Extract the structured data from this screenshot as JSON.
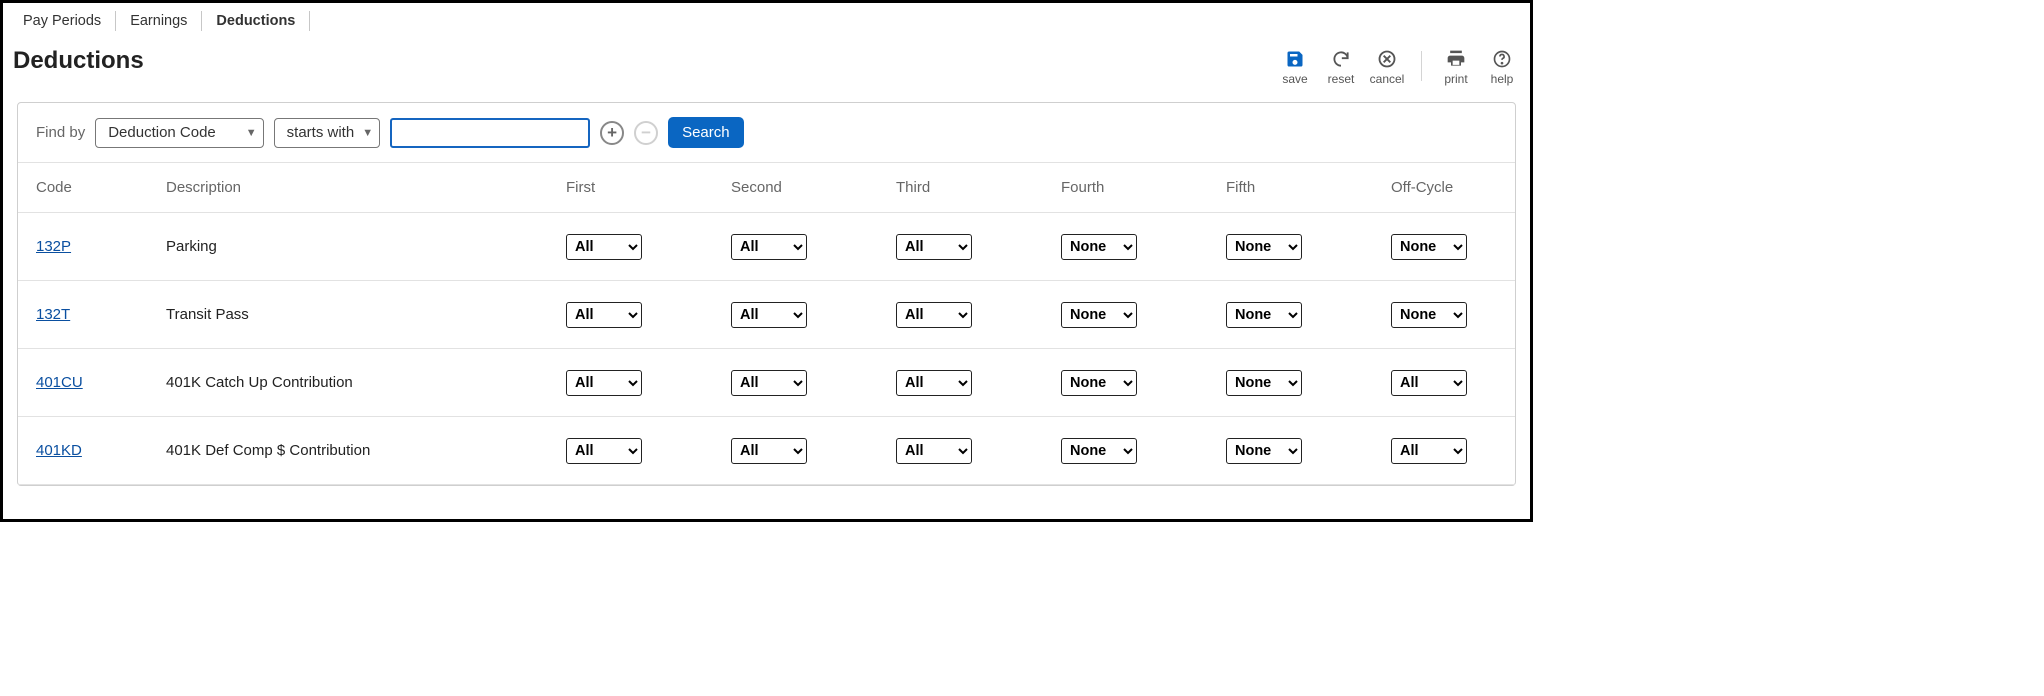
{
  "tabs": {
    "items": [
      {
        "label": "Pay Periods",
        "active": false
      },
      {
        "label": "Earnings",
        "active": false
      },
      {
        "label": "Deductions",
        "active": true
      }
    ]
  },
  "page": {
    "title": "Deductions"
  },
  "actions": {
    "save": {
      "label": "save",
      "color": "#0a66c2"
    },
    "reset": {
      "label": "reset",
      "color": "#555555"
    },
    "cancel": {
      "label": "cancel",
      "color": "#555555"
    },
    "print": {
      "label": "print",
      "color": "#555555"
    },
    "help": {
      "label": "help",
      "color": "#555555"
    }
  },
  "findbar": {
    "label": "Find by",
    "field_select": "Deduction Code",
    "match_select": "starts with",
    "input_value": "",
    "search_label": "Search"
  },
  "columns": {
    "code": "Code",
    "description": "Description",
    "first": "First",
    "second": "Second",
    "third": "Third",
    "fourth": "Fourth",
    "fifth": "Fifth",
    "offcycle": "Off-Cycle"
  },
  "select_options": [
    "All",
    "None"
  ],
  "rows": [
    {
      "code": "132P",
      "description": "Parking",
      "first": "All",
      "second": "All",
      "third": "All",
      "fourth": "None",
      "fifth": "None",
      "offcycle": "None"
    },
    {
      "code": "132T",
      "description": "Transit Pass",
      "first": "All",
      "second": "All",
      "third": "All",
      "fourth": "None",
      "fifth": "None",
      "offcycle": "None"
    },
    {
      "code": "401CU",
      "description": "401K Catch Up Contribution",
      "first": "All",
      "second": "All",
      "third": "All",
      "fourth": "None",
      "fifth": "None",
      "offcycle": "All"
    },
    {
      "code": "401KD",
      "description": "401K Def Comp $ Contribution",
      "first": "All",
      "second": "All",
      "third": "All",
      "fourth": "None",
      "fifth": "None",
      "offcycle": "All"
    }
  ],
  "colors": {
    "link": "#0a4fa0",
    "primary": "#0a66c2",
    "border": "#cfcfcf"
  }
}
